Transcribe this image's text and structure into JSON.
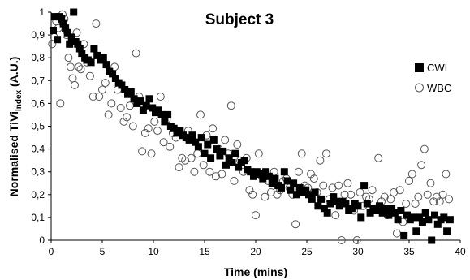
{
  "chart_data": {
    "type": "scatter",
    "title": "Subject 3",
    "xlabel": "Time (mins)",
    "ylabel": {
      "main": "Normalised TiVi",
      "subscript": "Index",
      "suffix": " (A.U.)"
    },
    "xlim": [
      0,
      40
    ],
    "ylim": [
      0,
      1
    ],
    "x_ticks": [
      "0",
      "5",
      "10",
      "15",
      "20",
      "25",
      "30",
      "35",
      "40"
    ],
    "y_ticks": [
      "0",
      "0,1",
      "0,2",
      "0,3",
      "0,4",
      "0,5",
      "0,6",
      "0,7",
      "0,8",
      "0,9",
      "1"
    ],
    "grid": false,
    "legend_position": "right",
    "colors": {
      "cwi": "#000000",
      "wbc": "#555555"
    },
    "series": [
      {
        "name": "CWI",
        "marker": "filled-square",
        "points": [
          [
            0.2,
            0.92
          ],
          [
            0.4,
            0.98
          ],
          [
            0.6,
            0.88
          ],
          [
            0.8,
            0.98
          ],
          [
            1.0,
            0.97
          ],
          [
            1.2,
            0.95
          ],
          [
            1.4,
            0.93
          ],
          [
            1.6,
            0.91
          ],
          [
            1.8,
            0.86
          ],
          [
            2.0,
            0.89
          ],
          [
            2.2,
            1.0
          ],
          [
            2.4,
            0.87
          ],
          [
            2.6,
            0.86
          ],
          [
            2.8,
            0.84
          ],
          [
            3.0,
            0.82
          ],
          [
            3.3,
            0.8
          ],
          [
            3.6,
            0.79
          ],
          [
            3.9,
            0.78
          ],
          [
            4.2,
            0.84
          ],
          [
            4.5,
            0.81
          ],
          [
            4.8,
            0.79
          ],
          [
            5.1,
            0.8
          ],
          [
            5.4,
            0.77
          ],
          [
            5.7,
            0.74
          ],
          [
            6.0,
            0.73
          ],
          [
            6.3,
            0.71
          ],
          [
            6.6,
            0.69
          ],
          [
            6.9,
            0.68
          ],
          [
            7.2,
            0.66
          ],
          [
            7.5,
            0.64
          ],
          [
            7.8,
            0.65
          ],
          [
            8.1,
            0.62
          ],
          [
            8.4,
            0.6
          ],
          [
            8.7,
            0.61
          ],
          [
            9.0,
            0.57
          ],
          [
            9.3,
            0.59
          ],
          [
            9.6,
            0.62
          ],
          [
            9.9,
            0.58
          ],
          [
            10.2,
            0.56
          ],
          [
            10.5,
            0.57
          ],
          [
            10.8,
            0.55
          ],
          [
            11.1,
            0.52
          ],
          [
            11.4,
            0.55
          ],
          [
            11.7,
            0.5
          ],
          [
            12.0,
            0.49
          ],
          [
            12.3,
            0.47
          ],
          [
            12.6,
            0.48
          ],
          [
            12.9,
            0.46
          ],
          [
            13.2,
            0.45
          ],
          [
            13.5,
            0.44
          ],
          [
            13.8,
            0.46
          ],
          [
            14.1,
            0.43
          ],
          [
            14.4,
            0.41
          ],
          [
            14.7,
            0.45
          ],
          [
            15.0,
            0.38
          ],
          [
            15.3,
            0.42
          ],
          [
            15.6,
            0.36
          ],
          [
            15.9,
            0.44
          ],
          [
            16.2,
            0.4
          ],
          [
            16.5,
            0.37
          ],
          [
            16.8,
            0.39
          ],
          [
            17.1,
            0.33
          ],
          [
            17.4,
            0.36
          ],
          [
            17.7,
            0.34
          ],
          [
            18.0,
            0.38
          ],
          [
            18.3,
            0.32
          ],
          [
            18.6,
            0.34
          ],
          [
            18.9,
            0.35
          ],
          [
            19.2,
            0.31
          ],
          [
            19.5,
            0.3
          ],
          [
            19.8,
            0.28
          ],
          [
            20.1,
            0.3
          ],
          [
            20.4,
            0.29
          ],
          [
            20.7,
            0.27
          ],
          [
            21.0,
            0.3
          ],
          [
            21.3,
            0.28
          ],
          [
            21.6,
            0.25
          ],
          [
            21.9,
            0.27
          ],
          [
            22.2,
            0.24
          ],
          [
            22.5,
            0.23
          ],
          [
            22.8,
            0.3
          ],
          [
            23.1,
            0.26
          ],
          [
            23.4,
            0.22
          ],
          [
            23.7,
            0.25
          ],
          [
            24.0,
            0.2
          ],
          [
            24.3,
            0.23
          ],
          [
            24.6,
            0.21
          ],
          [
            24.9,
            0.22
          ],
          [
            25.2,
            0.2
          ],
          [
            25.5,
            0.18
          ],
          [
            25.8,
            0.21
          ],
          [
            26.1,
            0.15
          ],
          [
            26.4,
            0.18
          ],
          [
            26.7,
            0.14
          ],
          [
            27.0,
            0.12
          ],
          [
            27.3,
            0.16
          ],
          [
            27.6,
            0.19
          ],
          [
            27.9,
            0.17
          ],
          [
            28.2,
            0.15
          ],
          [
            28.5,
            0.17
          ],
          [
            28.8,
            0.16
          ],
          [
            29.1,
            0.13
          ],
          [
            29.4,
            0.14
          ],
          [
            29.7,
            0.16
          ],
          [
            30.0,
            0.15
          ],
          [
            30.3,
            0.1
          ],
          [
            30.6,
            0.24
          ],
          [
            30.9,
            0.16
          ],
          [
            31.2,
            0.12
          ],
          [
            31.5,
            0.14
          ],
          [
            31.8,
            0.13
          ],
          [
            32.1,
            0.15
          ],
          [
            32.4,
            0.12
          ],
          [
            32.7,
            0.14
          ],
          [
            33.0,
            0.11
          ],
          [
            33.3,
            0.14
          ],
          [
            33.6,
            0.12
          ],
          [
            33.9,
            0.09
          ],
          [
            34.2,
            0.13
          ],
          [
            34.5,
            0.02
          ],
          [
            34.8,
            0.11
          ],
          [
            35.1,
            0.09
          ],
          [
            35.4,
            0.1
          ],
          [
            35.7,
            0.04
          ],
          [
            36.0,
            0.1
          ],
          [
            36.3,
            0.08
          ],
          [
            36.6,
            0.12
          ],
          [
            36.9,
            0.09
          ],
          [
            37.2,
            0.0
          ],
          [
            37.5,
            0.11
          ],
          [
            37.8,
            0.07
          ],
          [
            38.1,
            0.09
          ],
          [
            38.4,
            0.1
          ],
          [
            38.7,
            0.04
          ],
          [
            39.0,
            0.09
          ]
        ]
      },
      {
        "name": "WBC",
        "marker": "open-circle",
        "points": [
          [
            0.1,
            0.86
          ],
          [
            0.3,
            0.89
          ],
          [
            0.5,
            0.96
          ],
          [
            0.7,
            0.93
          ],
          [
            0.9,
            0.6
          ],
          [
            1.1,
            0.99
          ],
          [
            1.3,
            0.97
          ],
          [
            1.5,
            0.9
          ],
          [
            1.7,
            0.8
          ],
          [
            1.9,
            0.76
          ],
          [
            2.1,
            0.71
          ],
          [
            2.3,
            0.68
          ],
          [
            2.5,
            0.91
          ],
          [
            2.7,
            0.76
          ],
          [
            2.9,
            0.75
          ],
          [
            3.2,
            0.86
          ],
          [
            3.5,
            0.78
          ],
          [
            3.8,
            0.72
          ],
          [
            4.1,
            0.63
          ],
          [
            4.4,
            0.95
          ],
          [
            4.7,
            0.63
          ],
          [
            5.0,
            0.66
          ],
          [
            5.3,
            0.69
          ],
          [
            5.6,
            0.55
          ],
          [
            5.9,
            0.6
          ],
          [
            6.2,
            0.76
          ],
          [
            6.5,
            0.66
          ],
          [
            6.8,
            0.58
          ],
          [
            7.1,
            0.52
          ],
          [
            7.4,
            0.54
          ],
          [
            7.7,
            0.59
          ],
          [
            8.0,
            0.5
          ],
          [
            8.3,
            0.82
          ],
          [
            8.6,
            0.63
          ],
          [
            8.9,
            0.39
          ],
          [
            9.2,
            0.47
          ],
          [
            9.5,
            0.49
          ],
          [
            9.8,
            0.38
          ],
          [
            10.1,
            0.52
          ],
          [
            10.4,
            0.48
          ],
          [
            10.7,
            0.63
          ],
          [
            11.0,
            0.43
          ],
          [
            11.3,
            0.53
          ],
          [
            11.6,
            0.41
          ],
          [
            11.9,
            0.47
          ],
          [
            12.2,
            0.45
          ],
          [
            12.5,
            0.32
          ],
          [
            12.8,
            0.36
          ],
          [
            13.1,
            0.35
          ],
          [
            13.4,
            0.48
          ],
          [
            13.7,
            0.36
          ],
          [
            14.0,
            0.3
          ],
          [
            14.3,
            0.38
          ],
          [
            14.6,
            0.55
          ],
          [
            14.9,
            0.33
          ],
          [
            15.2,
            0.46
          ],
          [
            15.5,
            0.3
          ],
          [
            15.8,
            0.49
          ],
          [
            16.1,
            0.28
          ],
          [
            16.4,
            0.4
          ],
          [
            16.7,
            0.29
          ],
          [
            17.0,
            0.44
          ],
          [
            17.3,
            0.38
          ],
          [
            17.6,
            0.59
          ],
          [
            17.9,
            0.26
          ],
          [
            18.2,
            0.42
          ],
          [
            18.5,
            0.35
          ],
          [
            18.8,
            0.3
          ],
          [
            19.1,
            0.36
          ],
          [
            19.4,
            0.22
          ],
          [
            19.7,
            0.2
          ],
          [
            20.0,
            0.11
          ],
          [
            20.3,
            0.38
          ],
          [
            20.6,
            0.28
          ],
          [
            20.9,
            0.19
          ],
          [
            21.2,
            0.26
          ],
          [
            21.5,
            0.21
          ],
          [
            21.8,
            0.3
          ],
          [
            22.1,
            0.2
          ],
          [
            22.4,
            0.22
          ],
          [
            22.7,
            0.26
          ],
          [
            23.0,
            0.27
          ],
          [
            23.3,
            0.23
          ],
          [
            23.6,
            0.2
          ],
          [
            23.9,
            0.07
          ],
          [
            24.2,
            0.3
          ],
          [
            24.5,
            0.38
          ],
          [
            24.8,
            0.24
          ],
          [
            25.1,
            0.23
          ],
          [
            25.4,
            0.29
          ],
          [
            25.7,
            0.27
          ],
          [
            26.0,
            0.21
          ],
          [
            26.3,
            0.35
          ],
          [
            26.6,
            0.24
          ],
          [
            26.9,
            0.38
          ],
          [
            27.2,
            0.18
          ],
          [
            27.5,
            0.23
          ],
          [
            27.8,
            0.11
          ],
          [
            28.1,
            0.24
          ],
          [
            28.4,
            0.0
          ],
          [
            28.7,
            0.2
          ],
          [
            29.0,
            0.25
          ],
          [
            29.3,
            0.2
          ],
          [
            29.6,
            0.13
          ],
          [
            29.9,
            0.0
          ],
          [
            30.2,
            0.21
          ],
          [
            30.5,
            0.15
          ],
          [
            30.8,
            0.19
          ],
          [
            31.1,
            0.18
          ],
          [
            31.4,
            0.22
          ],
          [
            31.7,
            0.14
          ],
          [
            32.0,
            0.36
          ],
          [
            32.3,
            0.17
          ],
          [
            32.6,
            0.19
          ],
          [
            32.9,
            0.11
          ],
          [
            33.2,
            0.18
          ],
          [
            33.5,
            0.21
          ],
          [
            33.8,
            0.03
          ],
          [
            34.1,
            0.22
          ],
          [
            34.4,
            0.08
          ],
          [
            34.7,
            0.16
          ],
          [
            35.0,
            0.26
          ],
          [
            35.3,
            0.29
          ],
          [
            35.6,
            0.16
          ],
          [
            35.9,
            0.19
          ],
          [
            36.2,
            0.33
          ],
          [
            36.5,
            0.4
          ],
          [
            36.8,
            0.2
          ],
          [
            37.1,
            0.25
          ],
          [
            37.4,
            0.17
          ],
          [
            37.7,
            0.19
          ],
          [
            38.0,
            0.17
          ],
          [
            38.3,
            0.2
          ],
          [
            38.6,
            0.29
          ],
          [
            38.9,
            0.18
          ]
        ]
      }
    ]
  }
}
